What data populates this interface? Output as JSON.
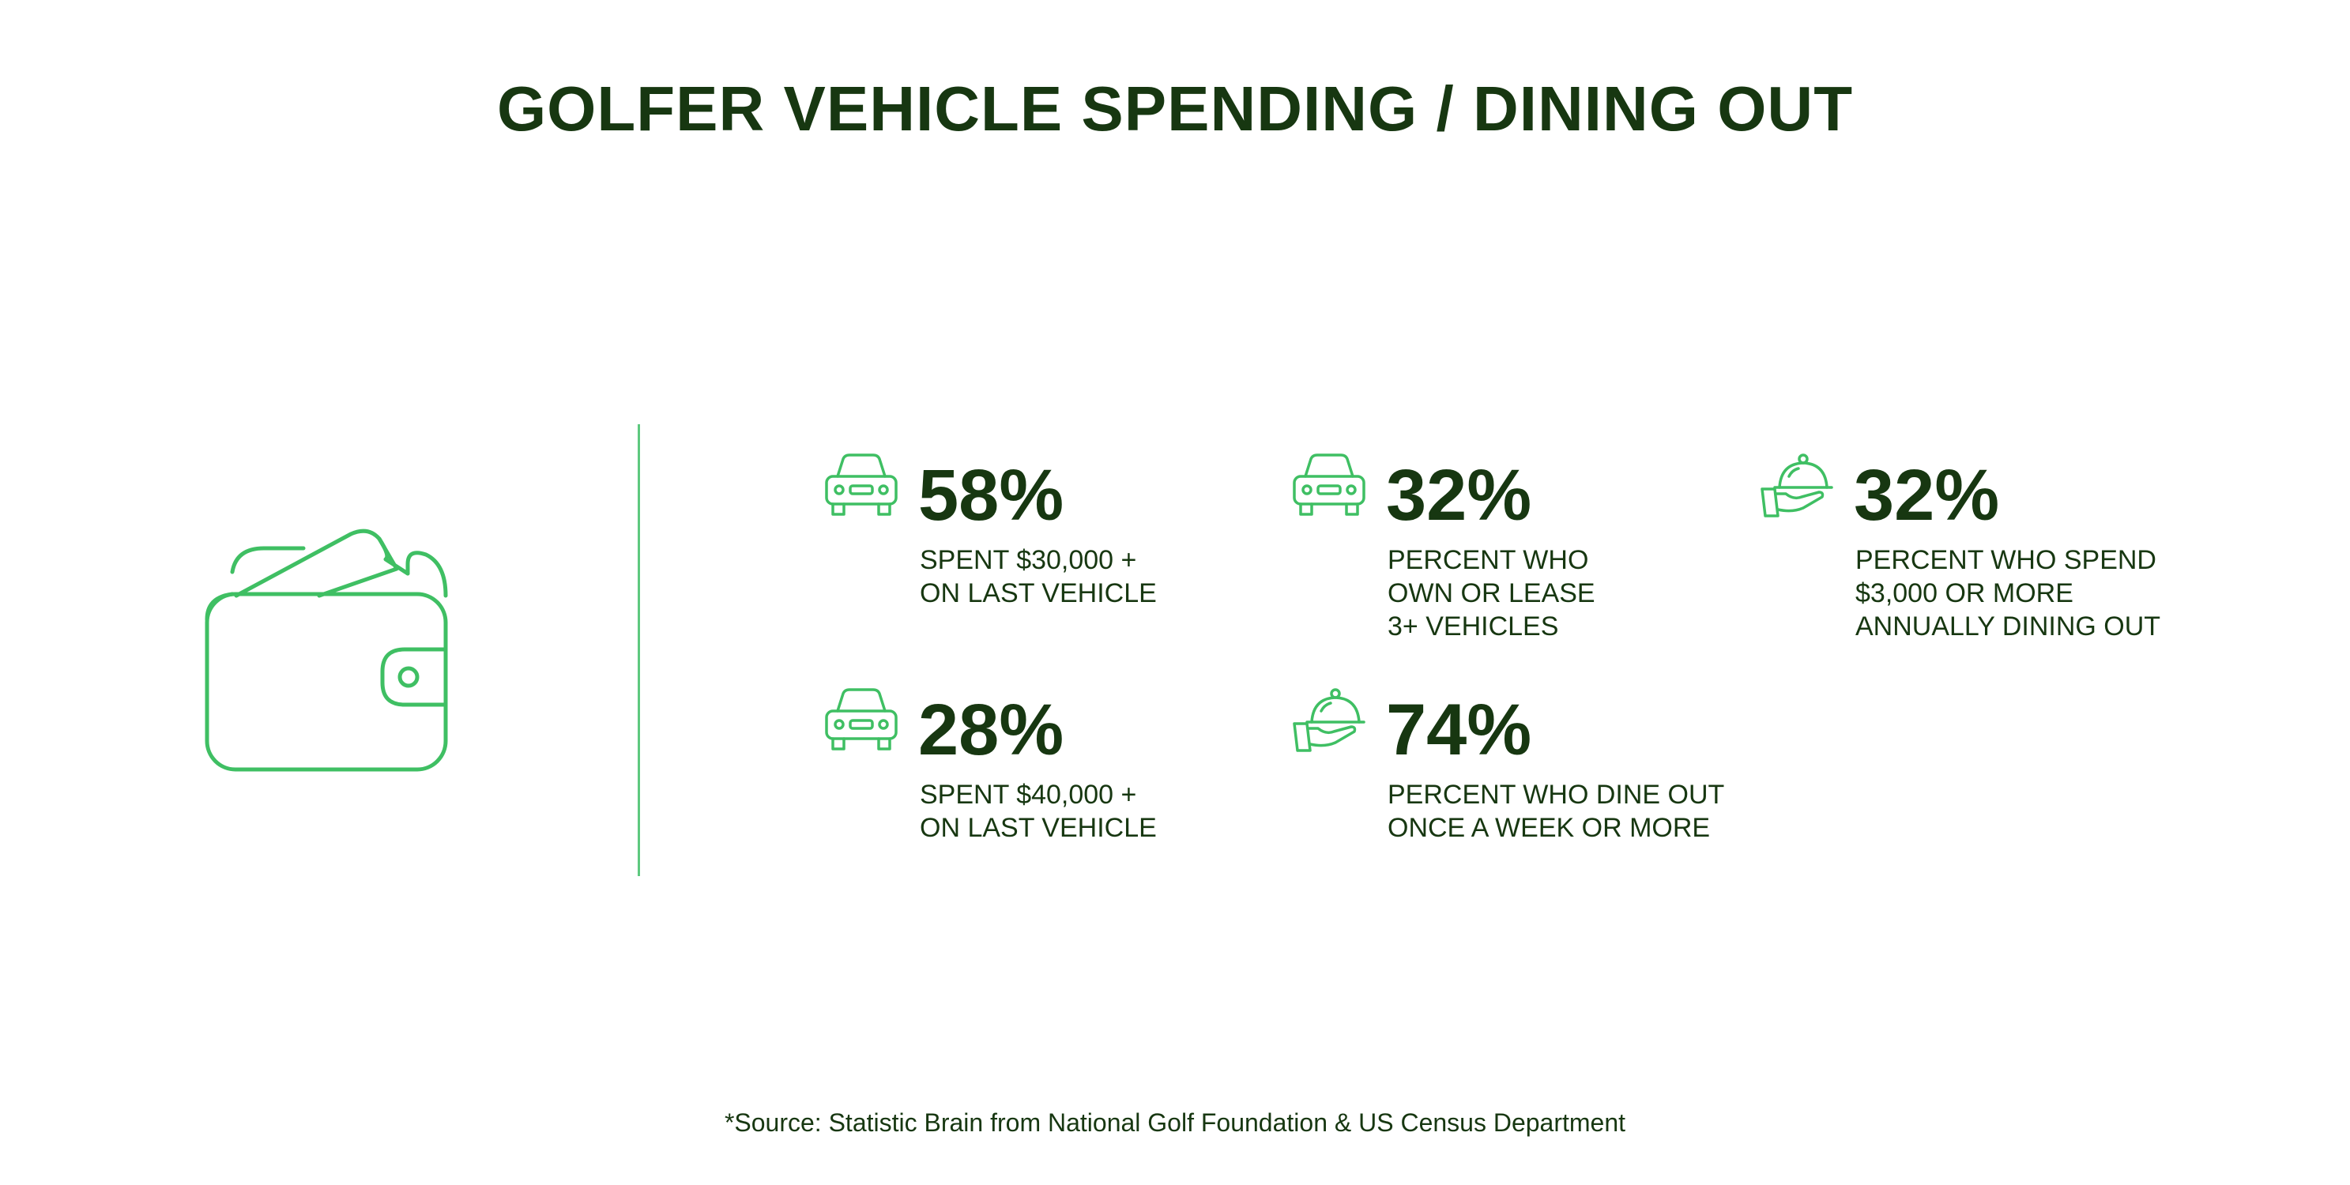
{
  "title": "GOLFER VEHICLE SPENDING / DINING OUT",
  "colors": {
    "primary_text": "#173711",
    "accent_green": "#5ec97f",
    "background": "#ffffff"
  },
  "hero_icon": "wallet-icon",
  "stats": [
    {
      "icon": "car-icon",
      "value": "58%",
      "lines": [
        "SPENT $30,000 +",
        "ON LAST VEHICLE"
      ]
    },
    {
      "icon": "car-icon",
      "value": "32%",
      "lines": [
        "PERCENT WHO",
        "OWN OR LEASE",
        "3+ VEHICLES"
      ]
    },
    {
      "icon": "food-cloche-icon",
      "value": "32%",
      "lines": [
        "PERCENT WHO SPEND",
        "$3,000 OR MORE",
        "ANNUALLY DINING OUT"
      ]
    },
    {
      "icon": "car-icon",
      "value": "28%",
      "lines": [
        "SPENT $40,000 +",
        "ON LAST VEHICLE"
      ]
    },
    {
      "icon": "food-cloche-icon",
      "value": "74%",
      "lines": [
        "PERCENT WHO DINE OUT",
        "ONCE A WEEK OR MORE"
      ]
    }
  ],
  "source": "*Source: Statistic Brain from National Golf Foundation & US Census Department"
}
